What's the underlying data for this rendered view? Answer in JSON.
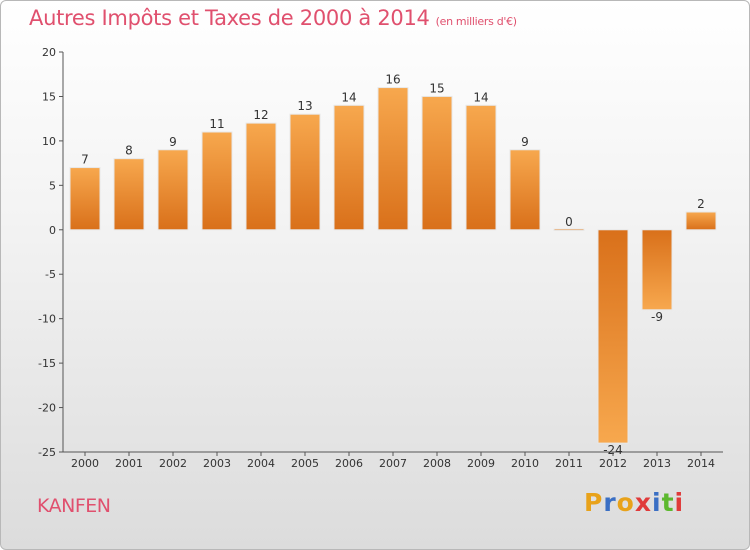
{
  "chart_data": {
    "type": "bar",
    "title": "Autres Impôts et Taxes de 2000 à 2014",
    "subtitle": "(en milliers d'€)",
    "categories": [
      "2000",
      "2001",
      "2002",
      "2003",
      "2004",
      "2005",
      "2006",
      "2007",
      "2008",
      "2009",
      "2010",
      "2011",
      "2012",
      "2013",
      "2014"
    ],
    "values": [
      7,
      8,
      9,
      11,
      12,
      13,
      14,
      16,
      15,
      14,
      9,
      0,
      -24,
      -9,
      2
    ],
    "data_labels": [
      "7",
      "8",
      "9",
      "11",
      "12",
      "13",
      "14",
      "16",
      "15",
      "14",
      "9",
      "0",
      "-24",
      "-9",
      "2"
    ],
    "ylim": [
      -25,
      20
    ],
    "yticks": [
      20,
      15,
      10,
      5,
      0,
      -5,
      -10,
      -15,
      -20,
      -25
    ],
    "grid": false,
    "colors": {
      "bar_dark": "#d9701a",
      "bar_light": "#f7a84e"
    }
  },
  "place_name": "KANFEN",
  "logo": {
    "letters": [
      "P",
      "r",
      "o",
      "x",
      "i",
      "t",
      "i"
    ],
    "colors": [
      "#e8a21a",
      "#3a6fc4",
      "#e8a21a",
      "#e03a3a",
      "#3a6fc4",
      "#5cb82e",
      "#e03a3a"
    ]
  }
}
